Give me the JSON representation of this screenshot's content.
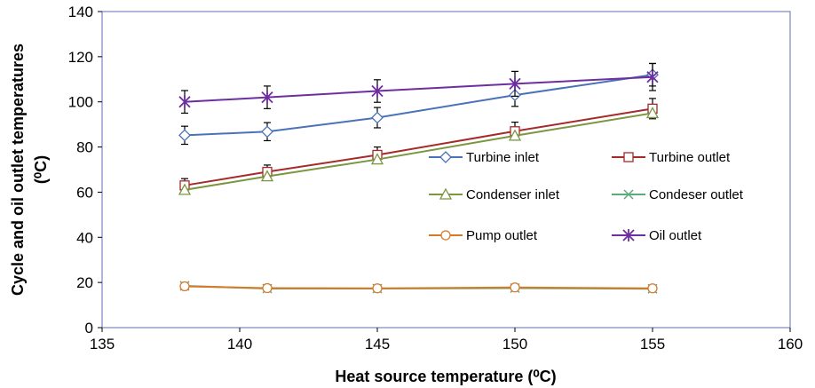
{
  "chart_data": {
    "type": "line",
    "xlabel": "Heat source temperature (⁰C)",
    "ylabel_line1": "Cycle and oil outlet  temperatures",
    "ylabel_line2": "(⁰C)",
    "xlim": [
      135,
      160
    ],
    "ylim": [
      0,
      140
    ],
    "xticks": [
      135,
      140,
      145,
      150,
      155,
      160
    ],
    "yticks": [
      0,
      20,
      40,
      60,
      80,
      100,
      120,
      140
    ],
    "grid": false,
    "legend_position": "inside-right",
    "x": [
      138,
      141,
      145,
      150,
      155
    ],
    "series": [
      {
        "name": "Turbine inlet",
        "color": "#4a72b8",
        "marker": "diamond",
        "values": [
          85.2,
          86.8,
          93.0,
          103.0,
          112.0
        ],
        "error": [
          4.0,
          4.0,
          4.5,
          5.0,
          5.0
        ]
      },
      {
        "name": "Turbine outlet",
        "color": "#a62a2a",
        "marker": "square",
        "values": [
          63.0,
          69.0,
          76.5,
          87.0,
          97.0
        ],
        "error": [
          3.0,
          3.0,
          3.5,
          4.0,
          4.5
        ]
      },
      {
        "name": "Condenser inlet",
        "color": "#7a9640",
        "marker": "triangle",
        "values": [
          61.0,
          67.0,
          74.5,
          85.0,
          95.0
        ],
        "error": [
          0,
          0,
          0,
          0,
          0
        ]
      },
      {
        "name": "Condeser outlet",
        "color": "#5bab7c",
        "marker": "x",
        "values": [
          18.5,
          17.3,
          17.3,
          17.5,
          17.2
        ],
        "error": [
          0,
          0,
          0,
          0,
          0
        ]
      },
      {
        "name": "Pump outlet",
        "color": "#d8792a",
        "marker": "circle",
        "values": [
          18.3,
          17.5,
          17.4,
          17.8,
          17.4
        ],
        "error": [
          0,
          0,
          0,
          0,
          0
        ]
      },
      {
        "name": "Oil outlet",
        "color": "#6d2fa0",
        "marker": "star",
        "values": [
          100.0,
          102.0,
          104.8,
          108.0,
          111.0
        ],
        "error": [
          5.0,
          5.0,
          5.0,
          5.5,
          6.0
        ]
      }
    ]
  }
}
